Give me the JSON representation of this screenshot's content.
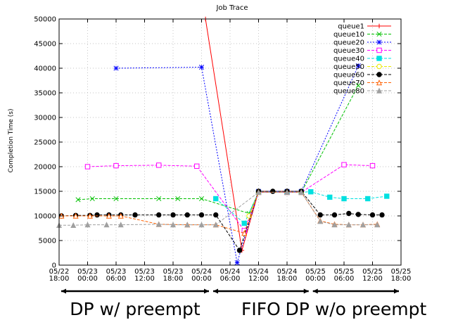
{
  "chart_data": {
    "type": "line",
    "title": "Job Trace",
    "ylabel": "Completion Time (s)",
    "xlabel": "",
    "ylim": [
      0,
      50000
    ],
    "yticks": [
      0,
      5000,
      10000,
      15000,
      20000,
      25000,
      30000,
      35000,
      40000,
      45000,
      50000
    ],
    "xlim": [
      "2012-05-22T18:00",
      "2012-05-25T18:00"
    ],
    "xticks": [
      {
        "t": "2012-05-22T18:00",
        "label": [
          "05/22",
          "18:00"
        ]
      },
      {
        "t": "2012-05-23T00:00",
        "label": [
          "05/23",
          "00:00"
        ]
      },
      {
        "t": "2012-05-23T06:00",
        "label": [
          "05/23",
          "06:00"
        ]
      },
      {
        "t": "2012-05-23T12:00",
        "label": [
          "05/23",
          "12:00"
        ]
      },
      {
        "t": "2012-05-23T18:00",
        "label": [
          "05/23",
          "18:00"
        ]
      },
      {
        "t": "2012-05-24T00:00",
        "label": [
          "05/24",
          "00:00"
        ]
      },
      {
        "t": "2012-05-24T06:00",
        "label": [
          "05/24",
          "06:00"
        ]
      },
      {
        "t": "2012-05-24T12:00",
        "label": [
          "05/24",
          "12:00"
        ]
      },
      {
        "t": "2012-05-24T18:00",
        "label": [
          "05/24",
          "18:00"
        ]
      },
      {
        "t": "2012-05-25T00:00",
        "label": [
          "05/25",
          "00:00"
        ]
      },
      {
        "t": "2012-05-25T06:00",
        "label": [
          "05/25",
          "06:00"
        ]
      },
      {
        "t": "2012-05-25T12:00",
        "label": [
          "05/25",
          "12:00"
        ]
      },
      {
        "t": "2012-05-25T18:00",
        "label": [
          "05/25",
          "18:00"
        ]
      }
    ],
    "grid": true,
    "legend_position": "top-right",
    "series": [
      {
        "name": "queue1",
        "color": "#ff0000",
        "marker": "plus",
        "dash": "solid",
        "points": [
          [
            "2012-05-24T00:50",
            50000
          ],
          [
            "2012-05-24T08:30",
            3000
          ],
          [
            "2012-05-24T12:00",
            15000
          ],
          [
            "2012-05-24T15:00",
            15000
          ],
          [
            "2012-05-24T18:00",
            15000
          ],
          [
            "2012-05-24T21:00",
            15000
          ]
        ]
      },
      {
        "name": "queue10",
        "color": "#00c000",
        "marker": "x",
        "dash": "dashed",
        "points": [
          [
            "2012-05-22T22:00",
            13300
          ],
          [
            "2012-05-23T01:00",
            13500
          ],
          [
            "2012-05-23T06:00",
            13500
          ],
          [
            "2012-05-23T15:00",
            13500
          ],
          [
            "2012-05-23T19:00",
            13500
          ],
          [
            "2012-05-24T00:00",
            13500
          ],
          [
            "2012-05-24T10:00",
            10500
          ],
          [
            "2012-05-24T12:00",
            14800
          ],
          [
            "2012-05-24T18:00",
            14800
          ],
          [
            "2012-05-24T21:00",
            14800
          ],
          [
            "2012-05-25T09:00",
            36500
          ]
        ]
      },
      {
        "name": "queue20",
        "color": "#0000ff",
        "marker": "star",
        "dash": "dotted",
        "points": [
          [
            "2012-05-23T06:00",
            40000
          ],
          [
            "2012-05-24T00:00",
            40200
          ],
          [
            "2012-05-24T07:30",
            500
          ],
          [
            "2012-05-24T12:00",
            15000
          ],
          [
            "2012-05-24T18:00",
            15000
          ],
          [
            "2012-05-24T21:00",
            15000
          ],
          [
            "2012-05-25T09:00",
            40500
          ]
        ]
      },
      {
        "name": "queue30",
        "color": "#ff00ff",
        "marker": "square-open",
        "dash": "dashed",
        "points": [
          [
            "2012-05-23T00:00",
            20000
          ],
          [
            "2012-05-23T06:00",
            20200
          ],
          [
            "2012-05-23T15:00",
            20300
          ],
          [
            "2012-05-23T23:00",
            20100
          ],
          [
            "2012-05-24T09:00",
            7000
          ],
          [
            "2012-05-24T12:00",
            14800
          ],
          [
            "2012-05-24T18:00",
            14800
          ],
          [
            "2012-05-24T21:00",
            14800
          ],
          [
            "2012-05-25T06:00",
            20400
          ],
          [
            "2012-05-25T12:00",
            20200
          ]
        ]
      },
      {
        "name": "queue40",
        "color": "#00e0e0",
        "marker": "square-filled",
        "dash": "dashed",
        "points": [
          [
            "2012-05-24T03:00",
            13500
          ],
          [
            "2012-05-24T09:00",
            8500
          ],
          [
            "2012-05-24T12:00",
            14800
          ],
          [
            "2012-05-24T18:00",
            14800
          ],
          [
            "2012-05-24T21:00",
            14800
          ],
          [
            "2012-05-24T23:00",
            14900
          ],
          [
            "2012-05-25T03:00",
            13800
          ],
          [
            "2012-05-25T06:00",
            13500
          ],
          [
            "2012-05-25T11:00",
            13500
          ],
          [
            "2012-05-25T15:00",
            14000
          ]
        ]
      },
      {
        "name": "queue50",
        "color": "#e8e800",
        "marker": "circle-open",
        "dash": "dashed",
        "points": [
          [
            "2012-05-24T10:00",
            10000
          ],
          [
            "2012-05-24T12:00",
            14800
          ],
          [
            "2012-05-24T21:00",
            14800
          ]
        ]
      },
      {
        "name": "queue60",
        "color": "#000000",
        "marker": "circle-filled",
        "dash": "dashed",
        "points": [
          [
            "2012-05-22T18:30",
            10000
          ],
          [
            "2012-05-22T21:30",
            10100
          ],
          [
            "2012-05-23T00:30",
            10100
          ],
          [
            "2012-05-23T02:00",
            10200
          ],
          [
            "2012-05-23T04:30",
            10200
          ],
          [
            "2012-05-23T07:00",
            10200
          ],
          [
            "2012-05-23T10:00",
            10200
          ],
          [
            "2012-05-23T15:00",
            10200
          ],
          [
            "2012-05-23T18:00",
            10200
          ],
          [
            "2012-05-23T21:00",
            10200
          ],
          [
            "2012-05-24T00:00",
            10200
          ],
          [
            "2012-05-24T03:00",
            10200
          ],
          [
            "2012-05-24T08:00",
            3000
          ],
          [
            "2012-05-24T12:00",
            15000
          ],
          [
            "2012-05-24T15:00",
            15000
          ],
          [
            "2012-05-24T18:00",
            15000
          ],
          [
            "2012-05-24T21:00",
            15000
          ],
          [
            "2012-05-25T01:00",
            10200
          ],
          [
            "2012-05-25T04:00",
            10200
          ],
          [
            "2012-05-25T07:00",
            10500
          ],
          [
            "2012-05-25T09:00",
            10300
          ],
          [
            "2012-05-25T12:00",
            10200
          ],
          [
            "2012-05-25T14:00",
            10200
          ]
        ]
      },
      {
        "name": "queue70",
        "color": "#ff6000",
        "marker": "triangle-open",
        "dash": "dashed",
        "points": [
          [
            "2012-05-22T18:30",
            10000
          ],
          [
            "2012-05-22T21:30",
            10000
          ],
          [
            "2012-05-23T00:30",
            10000
          ],
          [
            "2012-05-23T04:30",
            10000
          ],
          [
            "2012-05-23T07:00",
            10000
          ],
          [
            "2012-05-23T15:00",
            8300
          ],
          [
            "2012-05-23T21:00",
            8200
          ],
          [
            "2012-05-24T03:00",
            8200
          ],
          [
            "2012-05-24T09:00",
            6500
          ],
          [
            "2012-05-24T12:00",
            14800
          ],
          [
            "2012-05-24T18:00",
            14800
          ],
          [
            "2012-05-24T21:00",
            14800
          ],
          [
            "2012-05-25T01:00",
            9000
          ],
          [
            "2012-05-25T04:00",
            8300
          ],
          [
            "2012-05-25T07:00",
            8200
          ],
          [
            "2012-05-25T10:00",
            8200
          ],
          [
            "2012-05-25T13:00",
            8300
          ]
        ]
      },
      {
        "name": "queue80",
        "color": "#a0a0a0",
        "marker": "triangle-filled",
        "dash": "dashed",
        "points": [
          [
            "2012-05-22T18:00",
            8100
          ],
          [
            "2012-05-22T21:00",
            8100
          ],
          [
            "2012-05-23T00:00",
            8200
          ],
          [
            "2012-05-23T04:00",
            8200
          ],
          [
            "2012-05-23T07:00",
            8200
          ],
          [
            "2012-05-23T15:00",
            8300
          ],
          [
            "2012-05-23T18:00",
            8200
          ],
          [
            "2012-05-23T21:00",
            8200
          ],
          [
            "2012-05-24T00:00",
            8200
          ],
          [
            "2012-05-24T03:00",
            8200
          ],
          [
            "2012-05-24T12:00",
            14800
          ],
          [
            "2012-05-24T18:00",
            14800
          ],
          [
            "2012-05-24T21:00",
            14800
          ],
          [
            "2012-05-25T01:00",
            8900
          ],
          [
            "2012-05-25T04:00",
            8200
          ],
          [
            "2012-05-25T07:00",
            8200
          ],
          [
            "2012-05-25T10:00",
            8200
          ],
          [
            "2012-05-25T13:00",
            8200
          ]
        ]
      }
    ],
    "annotations": [
      {
        "text": "DP w/ preempt",
        "t_start": "2012-05-22T18:00",
        "t_end": "2012-05-24T02:00"
      },
      {
        "text": "FIFO",
        "t_start": "2012-05-24T02:00",
        "t_end": "2012-05-24T23:00"
      },
      {
        "text": "DP w/o preempt",
        "t_start": "2012-05-24T23:00",
        "t_end": "2012-05-25T18:00"
      }
    ]
  }
}
